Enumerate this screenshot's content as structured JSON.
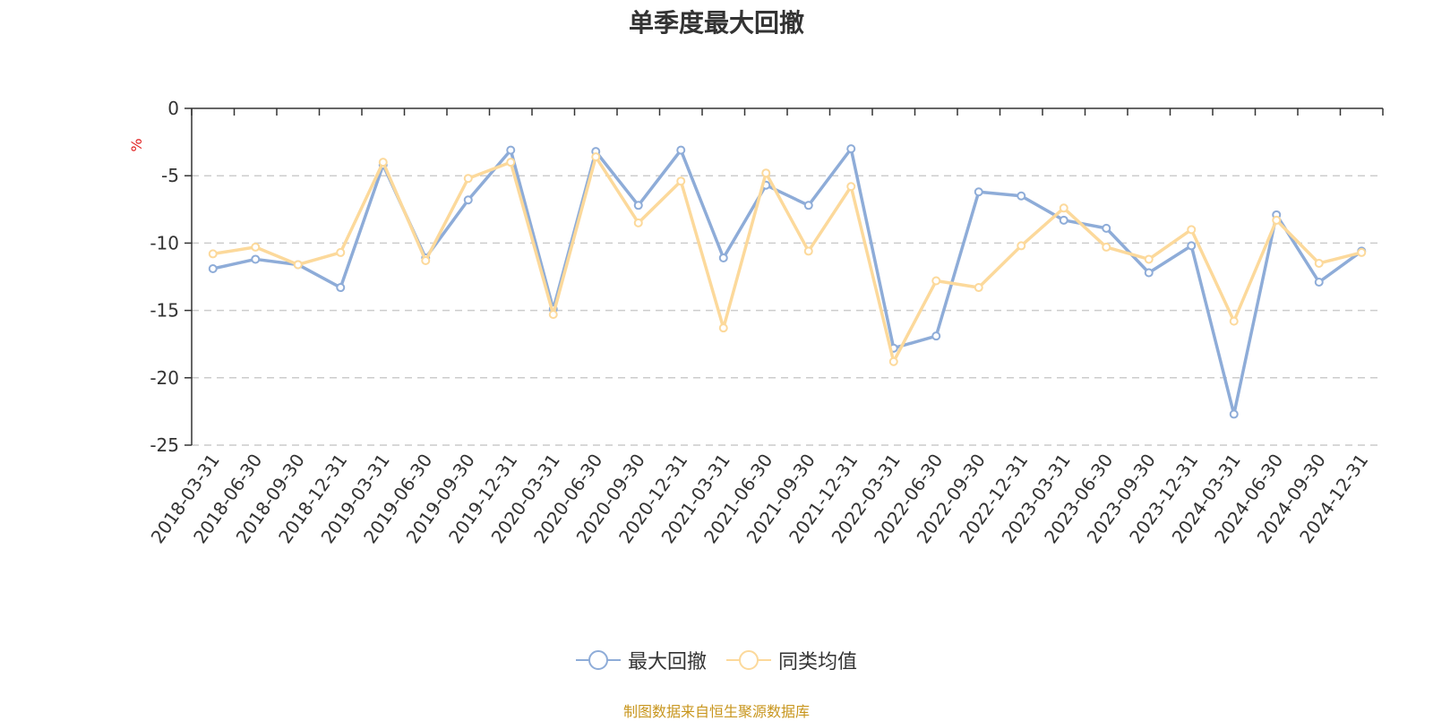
{
  "chart_data": {
    "type": "line",
    "title": "单季度最大回撤",
    "ylabel": "%",
    "ylim": [
      -25,
      0
    ],
    "yticks": [
      0,
      -5,
      -10,
      -15,
      -20,
      -25
    ],
    "grid": "horizontal dashed",
    "legend_position": "bottom-center",
    "categories": [
      "2018-03-31",
      "2018-06-30",
      "2018-09-30",
      "2018-12-31",
      "2019-03-31",
      "2019-06-30",
      "2019-09-30",
      "2019-12-31",
      "2020-03-31",
      "2020-06-30",
      "2020-09-30",
      "2020-12-31",
      "2021-03-31",
      "2021-06-30",
      "2021-09-30",
      "2021-12-31",
      "2022-03-31",
      "2022-06-30",
      "2022-09-30",
      "2022-12-31",
      "2023-03-31",
      "2023-06-30",
      "2023-09-30",
      "2023-12-31",
      "2024-03-31",
      "2024-06-30",
      "2024-09-30",
      "2024-12-31"
    ],
    "series": [
      {
        "name": "最大回撤",
        "color": "#8eacd8",
        "values": [
          -11.9,
          -11.2,
          -11.6,
          -13.3,
          -4.2,
          -11.1,
          -6.8,
          -3.1,
          -14.9,
          -3.2,
          -7.2,
          -3.1,
          -11.1,
          -5.7,
          -7.2,
          -3.0,
          -17.8,
          -16.9,
          -6.2,
          -6.5,
          -8.3,
          -8.9,
          -12.2,
          -10.2,
          -22.7,
          -7.9,
          -12.9,
          -10.6
        ]
      },
      {
        "name": "同类均值",
        "color": "#fcd99b",
        "values": [
          -10.8,
          -10.3,
          -11.6,
          -10.7,
          -4.0,
          -11.3,
          -5.2,
          -4.0,
          -15.3,
          -3.6,
          -8.5,
          -5.4,
          -16.3,
          -4.8,
          -10.6,
          -5.8,
          -18.8,
          -12.8,
          -13.3,
          -10.2,
          -7.4,
          -10.3,
          -11.2,
          -9.0,
          -15.8,
          -8.3,
          -11.5,
          -10.7
        ]
      }
    ]
  },
  "source_note": "制图数据来自恒生聚源数据库"
}
